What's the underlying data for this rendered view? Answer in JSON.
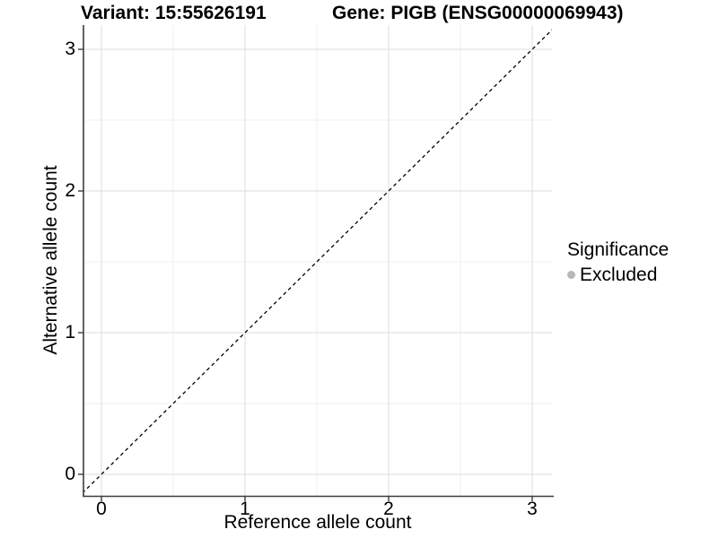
{
  "titles": {
    "variant": "Variant: 15:55626191",
    "gene": "Gene: PIGB (ENSG00000069943)"
  },
  "axes": {
    "x": {
      "label": "Reference allele count",
      "tick_labels": [
        "0",
        "1",
        "2",
        "3"
      ]
    },
    "y": {
      "label": "Alternative allele count",
      "tick_labels": [
        "0",
        "1",
        "2",
        "3"
      ]
    }
  },
  "legend": {
    "title": "Significance",
    "items": [
      {
        "label": "Excluded",
        "color": "#b8b8b8",
        "marker": "circle-icon"
      }
    ]
  },
  "chart_data": {
    "type": "scatter",
    "title": "Variant: 15:55626191 | Gene: PIGB (ENSG00000069943)",
    "xlabel": "Reference allele count",
    "ylabel": "Alternative allele count",
    "xlim": [
      -0.15,
      3.15
    ],
    "ylim": [
      -0.15,
      3.15
    ],
    "x_major_ticks": [
      0,
      1,
      2,
      3
    ],
    "y_major_ticks": [
      0,
      1,
      2,
      3
    ],
    "x_minor_ticks": [
      0.5,
      1.5,
      2.5
    ],
    "y_minor_ticks": [
      0.5,
      1.5,
      2.5
    ],
    "grid": "major+minor",
    "points": [],
    "series": [
      {
        "name": "Excluded",
        "color": "#b8b8b8",
        "points": []
      }
    ],
    "reference_line": {
      "kind": "identity",
      "slope": 1,
      "intercept": 0,
      "style": "dashed",
      "color": "#000000"
    },
    "legend": {
      "title": "Significance",
      "position": "right",
      "entries": [
        {
          "label": "Excluded",
          "color": "#b8b8b8"
        }
      ]
    },
    "colors": {
      "background": "#ffffff",
      "grid_major": "#e2e2e2",
      "grid_minor": "#efefef",
      "axis_line": "#3c3c3c",
      "text": "#000000",
      "excluded_marker": "#b8b8b8"
    }
  }
}
